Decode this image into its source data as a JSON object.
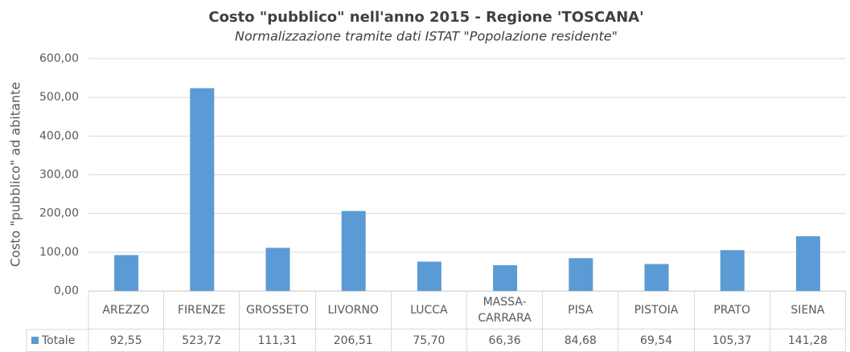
{
  "chart_data": {
    "type": "bar",
    "title": "Costo \"pubblico\" nell'anno 2015 - Regione 'TOSCANA'",
    "subtitle": "Normalizzazione tramite dati ISTAT \"Popolazione residente\"",
    "y_label": "Costo \"pubblico\" ad abitante",
    "categories": [
      "AREZZO",
      "FIRENZE",
      "GROSSETO",
      "LIVORNO",
      "LUCCA",
      "MASSA-CARRARA",
      "PISA",
      "PISTOIA",
      "PRATO",
      "SIENA"
    ],
    "series": [
      {
        "name": "Totale",
        "color": "#5b9bd5",
        "values": [
          92.55,
          523.72,
          111.31,
          206.51,
          75.7,
          66.36,
          84.68,
          69.54,
          105.37,
          141.28
        ],
        "value_labels": [
          "92,55",
          "523,72",
          "111,31",
          "206,51",
          "75,70",
          "66,36",
          "84,68",
          "69,54",
          "105,37",
          "141,28"
        ]
      }
    ],
    "ylim": [
      0,
      600
    ],
    "yticks": [
      {
        "value": 0,
        "label": "0,00"
      },
      {
        "value": 100,
        "label": "100,00"
      },
      {
        "value": 200,
        "label": "200,00"
      },
      {
        "value": 300,
        "label": "300,00"
      },
      {
        "value": 400,
        "label": "400,00"
      },
      {
        "value": 500,
        "label": "500,00"
      },
      {
        "value": 600,
        "label": "600,00"
      }
    ],
    "grid": true
  }
}
